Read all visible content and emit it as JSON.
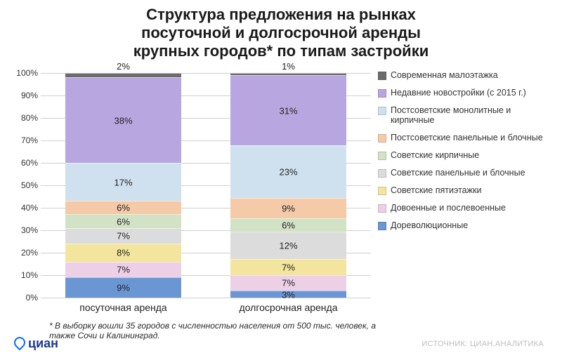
{
  "title_lines": [
    "Структура предложения на рынках",
    "посуточной и долгосрочной аренды",
    "крупных городов* по типам застройки"
  ],
  "chart": {
    "type": "stacked-bar-100",
    "ymax": 100,
    "ytick_step": 10,
    "ytick_suffix": "%",
    "grid_color": "#d0d0d0",
    "background_color": "#ffffff",
    "label_fontsize": 13,
    "tick_fontsize": 12,
    "bar_width_ratio": 0.7,
    "categories": [
      {
        "label": "посуточная аренда",
        "top_label": "2%"
      },
      {
        "label": "долгосрочная аренда",
        "top_label": "1%"
      }
    ],
    "series": [
      {
        "key": "modern_low",
        "name": "Современная малоэтажка",
        "color": "#6b6b6b"
      },
      {
        "key": "recent_new",
        "name": "Недавние новостройки (с 2015 г.)",
        "color": "#b8a6e0"
      },
      {
        "key": "postsov_mono",
        "name": "Постсоветские монолитные и кирпичные",
        "color": "#cfe1ee"
      },
      {
        "key": "postsov_panel",
        "name": "Постсоветские панельные и блочные",
        "color": "#f4caa8"
      },
      {
        "key": "sov_brick",
        "name": "Советские кирпичные",
        "color": "#d2e2c5"
      },
      {
        "key": "sov_panel",
        "name": "Советские панельные и блочные",
        "color": "#dcdcdc"
      },
      {
        "key": "sov_5floor",
        "name": "Советские пятиэтажки",
        "color": "#f3e59e"
      },
      {
        "key": "prewar",
        "name": "Довоенные и послевоенные",
        "color": "#edcfe6"
      },
      {
        "key": "prerev",
        "name": "Дореволюционные",
        "color": "#6a97d4"
      }
    ],
    "values": [
      {
        "modern_low": 2,
        "recent_new": 38,
        "postsov_mono": 17,
        "postsov_panel": 6,
        "sov_brick": 6,
        "sov_panel": 7,
        "sov_5floor": 8,
        "prewar": 7,
        "prerev": 9
      },
      {
        "modern_low": 1,
        "recent_new": 31,
        "postsov_mono": 23,
        "postsov_panel": 9,
        "sov_brick": 6,
        "sov_panel": 12,
        "sov_5floor": 7,
        "prewar": 7,
        "prerev": 3
      }
    ],
    "hide_segment_labels_for": [
      "modern_low"
    ]
  },
  "legend_title": null,
  "footnote": "* В выборку вошли 35 городов с численностью населения от 500 тыс. человек, а также Сочи и Калининград.",
  "source": "ИСТОЧНИК: ЦИАН.АНАЛИТИКА",
  "logo_text": "циан"
}
